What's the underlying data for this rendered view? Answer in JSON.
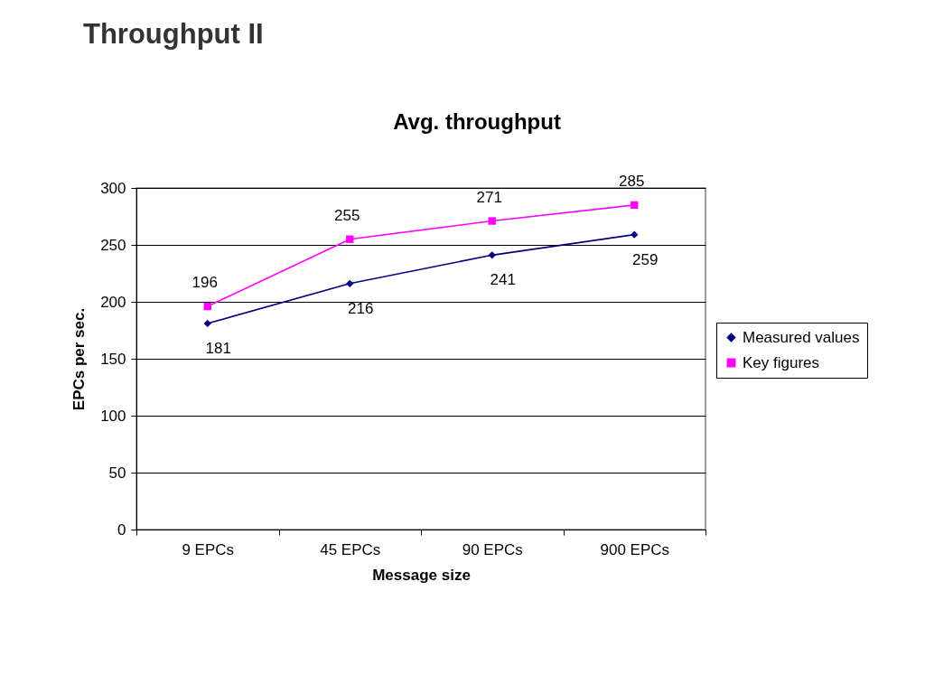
{
  "chart_data": {
    "type": "line",
    "title": "Throughput II",
    "subtitle": "Avg. throughput",
    "xlabel": "Message size",
    "ylabel": "EPCs per sec.",
    "categories": [
      "9 EPCs",
      "45 EPCs",
      "90 EPCs",
      "900 EPCs"
    ],
    "series": [
      {
        "name": "Measured values",
        "color": "#000080",
        "marker": "diamond",
        "values": [
          181,
          216,
          241,
          259
        ]
      },
      {
        "name": "Key figures",
        "color": "#ff00ff",
        "marker": "square",
        "values": [
          196,
          255,
          271,
          285
        ]
      }
    ],
    "ylim": [
      0,
      300
    ],
    "yticks": [
      0,
      50,
      100,
      150,
      200,
      250,
      300
    ],
    "grid": "y",
    "legend": "right",
    "data_labels": true,
    "line_style": "solid"
  }
}
